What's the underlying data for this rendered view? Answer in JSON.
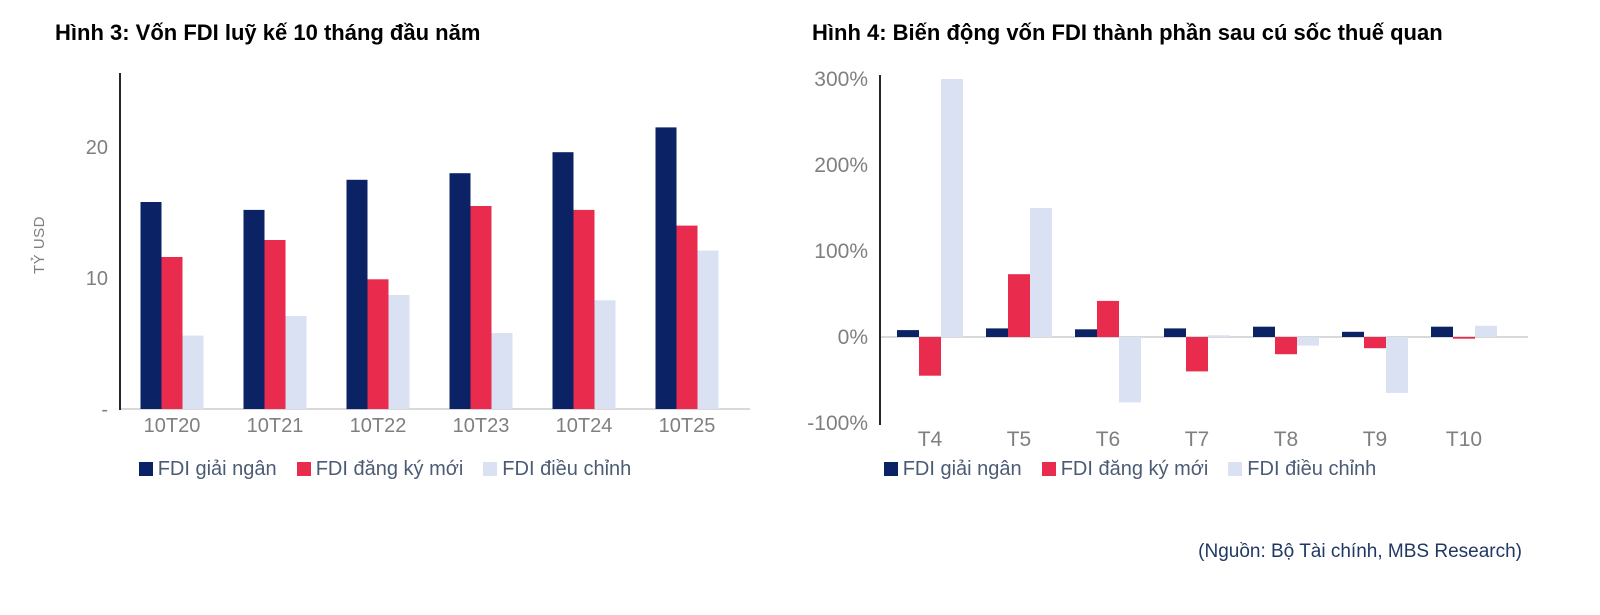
{
  "source_note": "(Nguồn: Bộ Tài chính, MBS Research)",
  "colors": {
    "navy": "#0B2265",
    "red": "#E92B4D",
    "light_blue": "#D9E1F2",
    "axis_line": "#262626",
    "zero_line": "#D9D9D9",
    "tick_text": "#7F7F7F",
    "category_text": "#7F7F7F",
    "legend_text": "#4C5B75",
    "title_text": "#000000",
    "source_text": "#1F3864"
  },
  "chart_data": [
    {
      "id": "hinh-3",
      "type": "bar",
      "title": "Hình 3: Vốn FDI luỹ kế 10 tháng đầu năm",
      "ylabel": "TỶ USD",
      "categories": [
        "10T20",
        "10T21",
        "10T22",
        "10T23",
        "10T24",
        "10T25"
      ],
      "series": [
        {
          "name": "FDI giải ngân",
          "color": "#0B2265",
          "values": [
            15.8,
            15.2,
            17.5,
            18.0,
            19.6,
            21.5
          ]
        },
        {
          "name": "FDI đăng ký mới",
          "color": "#E92B4D",
          "values": [
            11.6,
            12.9,
            9.9,
            15.5,
            15.2,
            14.0
          ]
        },
        {
          "name": "FDI điều chỉnh",
          "color": "#D9E1F2",
          "values": [
            5.6,
            7.1,
            8.7,
            5.8,
            8.3,
            12.1
          ]
        }
      ],
      "yticks": [
        {
          "v": 0,
          "label": "-"
        },
        {
          "v": 10,
          "label": "10"
        },
        {
          "v": 20,
          "label": "20"
        }
      ],
      "ylim": [
        0,
        25.5
      ],
      "grid": false,
      "legend_position": "bottom"
    },
    {
      "id": "hinh-4",
      "type": "bar",
      "title": "Hình 4: Biến động vốn FDI thành phần sau cú sốc thuế quan",
      "ylabel": "",
      "categories": [
        "T4",
        "T5",
        "T6",
        "T7",
        "T8",
        "T9",
        "T10"
      ],
      "series": [
        {
          "name": "FDI giải ngân",
          "color": "#0B2265",
          "values": [
            8,
            10,
            9,
            10,
            12,
            6,
            12
          ]
        },
        {
          "name": "FDI đăng ký mới",
          "color": "#E92B4D",
          "values": [
            -45,
            73,
            42,
            -40,
            -20,
            -13,
            -2
          ]
        },
        {
          "name": "FDI điều chỉnh",
          "color": "#D9E1F2",
          "values": [
            300,
            150,
            -76,
            2,
            -10,
            -65,
            13
          ]
        }
      ],
      "yticks": [
        {
          "v": -100,
          "label": "-100%"
        },
        {
          "v": 0,
          "label": "0%"
        },
        {
          "v": 100,
          "label": "100%"
        },
        {
          "v": 200,
          "label": "200%"
        },
        {
          "v": 300,
          "label": "300%"
        }
      ],
      "ylim": [
        -100,
        305
      ],
      "grid": false,
      "legend_position": "bottom"
    }
  ]
}
